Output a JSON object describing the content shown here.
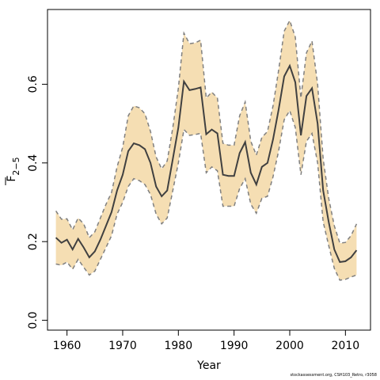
{
  "chart_data": {
    "type": "area",
    "title": "",
    "xlabel": "Year",
    "ylabel_main": "F",
    "ylabel_sub": "2−5",
    "xlim": [
      1956.5,
      2014.5
    ],
    "ylim": [
      -0.025,
      0.79
    ],
    "xticks": [
      1960,
      1970,
      1980,
      1990,
      2000,
      2010
    ],
    "yticks": [
      0.0,
      0.2,
      0.4,
      0.6
    ],
    "ytick_labels": [
      "0.0",
      "0.2",
      "0.4",
      "0.6"
    ],
    "grid": false,
    "colors": {
      "band": "#f5deb3",
      "bound_line": "#808080",
      "estimate_line": "#404040"
    },
    "x": [
      1958,
      1959,
      1960,
      1961,
      1962,
      1963,
      1964,
      1965,
      1966,
      1967,
      1968,
      1969,
      1970,
      1971,
      1972,
      1973,
      1974,
      1975,
      1976,
      1977,
      1978,
      1979,
      1980,
      1981,
      1982,
      1983,
      1984,
      1985,
      1986,
      1987,
      1988,
      1989,
      1990,
      1991,
      1992,
      1993,
      1994,
      1995,
      1996,
      1997,
      1998,
      1999,
      2000,
      2001,
      2002,
      2003,
      2004,
      2005,
      2006,
      2007,
      2008,
      2009,
      2010,
      2011,
      2012
    ],
    "series": [
      {
        "role": "estimate",
        "values": [
          0.21,
          0.197,
          0.205,
          0.18,
          0.207,
          0.185,
          0.16,
          0.175,
          0.205,
          0.24,
          0.275,
          0.33,
          0.37,
          0.43,
          0.45,
          0.445,
          0.435,
          0.4,
          0.34,
          0.315,
          0.33,
          0.41,
          0.49,
          0.607,
          0.585,
          0.588,
          0.592,
          0.473,
          0.485,
          0.475,
          0.37,
          0.367,
          0.367,
          0.425,
          0.453,
          0.375,
          0.345,
          0.39,
          0.4,
          0.46,
          0.535,
          0.62,
          0.647,
          0.605,
          0.47,
          0.57,
          0.59,
          0.5,
          0.33,
          0.25,
          0.18,
          0.148,
          0.15,
          0.16,
          0.178
        ]
      },
      {
        "role": "upper",
        "values": [
          0.278,
          0.257,
          0.258,
          0.23,
          0.26,
          0.245,
          0.21,
          0.225,
          0.26,
          0.295,
          0.325,
          0.39,
          0.44,
          0.52,
          0.545,
          0.54,
          0.525,
          0.48,
          0.415,
          0.385,
          0.405,
          0.49,
          0.59,
          0.73,
          0.703,
          0.705,
          0.712,
          0.565,
          0.58,
          0.565,
          0.45,
          0.445,
          0.445,
          0.52,
          0.555,
          0.455,
          0.42,
          0.465,
          0.48,
          0.545,
          0.635,
          0.735,
          0.762,
          0.72,
          0.565,
          0.68,
          0.71,
          0.6,
          0.41,
          0.31,
          0.24,
          0.196,
          0.198,
          0.215,
          0.245
        ]
      },
      {
        "role": "lower",
        "values": [
          0.143,
          0.14,
          0.148,
          0.13,
          0.155,
          0.135,
          0.115,
          0.125,
          0.155,
          0.185,
          0.215,
          0.27,
          0.3,
          0.34,
          0.36,
          0.355,
          0.345,
          0.32,
          0.27,
          0.245,
          0.26,
          0.33,
          0.4,
          0.485,
          0.47,
          0.472,
          0.475,
          0.375,
          0.39,
          0.38,
          0.29,
          0.29,
          0.29,
          0.335,
          0.36,
          0.295,
          0.272,
          0.31,
          0.315,
          0.365,
          0.43,
          0.51,
          0.533,
          0.49,
          0.37,
          0.455,
          0.475,
          0.4,
          0.25,
          0.19,
          0.132,
          0.102,
          0.104,
          0.11,
          0.115
        ]
      }
    ]
  },
  "footer": {
    "text": "stockassessment.org, CSH103_Retro, r3058"
  }
}
